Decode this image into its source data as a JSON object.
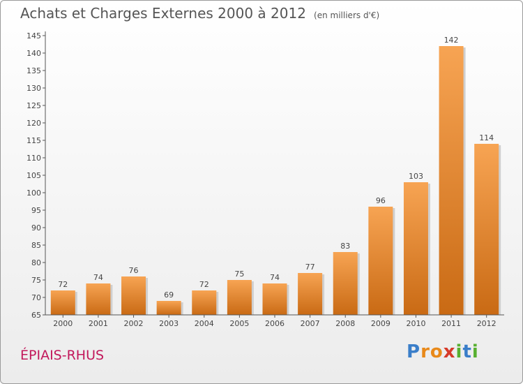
{
  "header": {
    "title": "Achats et Charges Externes 2000 à 2012",
    "unit": "(en milliers d'€)"
  },
  "footer": {
    "commune": "ÉPIAIS-RHUS",
    "logo": {
      "letters": [
        {
          "char": "P",
          "color": "#3a7ec9"
        },
        {
          "char": "r",
          "color": "#e8891a"
        },
        {
          "char": "o",
          "color": "#e8891a"
        },
        {
          "char": "x",
          "color": "#d63a2a"
        },
        {
          "char": "i",
          "color": "#58b030"
        },
        {
          "char": "t",
          "color": "#3a7ec9"
        },
        {
          "char": "i",
          "color": "#58b030"
        }
      ]
    }
  },
  "chart_data": {
    "type": "bar",
    "title": "Achats et Charges Externes 2000 à 2012",
    "subtitle": "(en milliers d'€)",
    "xlabel": "",
    "ylabel": "",
    "categories": [
      "2000",
      "2001",
      "2002",
      "2003",
      "2004",
      "2005",
      "2006",
      "2007",
      "2008",
      "2009",
      "2010",
      "2011",
      "2012"
    ],
    "values": [
      72,
      74,
      76,
      69,
      72,
      75,
      74,
      77,
      83,
      96,
      103,
      142,
      114
    ],
    "data_labels": [
      "72",
      "74",
      "76",
      "69",
      "72",
      "75",
      "74",
      "77",
      "83",
      "96",
      "103",
      "142",
      "114"
    ],
    "ylim": [
      65,
      145
    ],
    "yticks": [
      65,
      70,
      75,
      80,
      85,
      90,
      95,
      100,
      105,
      110,
      115,
      120,
      125,
      130,
      135,
      140,
      145
    ],
    "grid": false,
    "legend": "none",
    "colors": {
      "bar_light": "#f7a453",
      "bar_dark": "#c96a14",
      "axis": "#555555"
    }
  }
}
